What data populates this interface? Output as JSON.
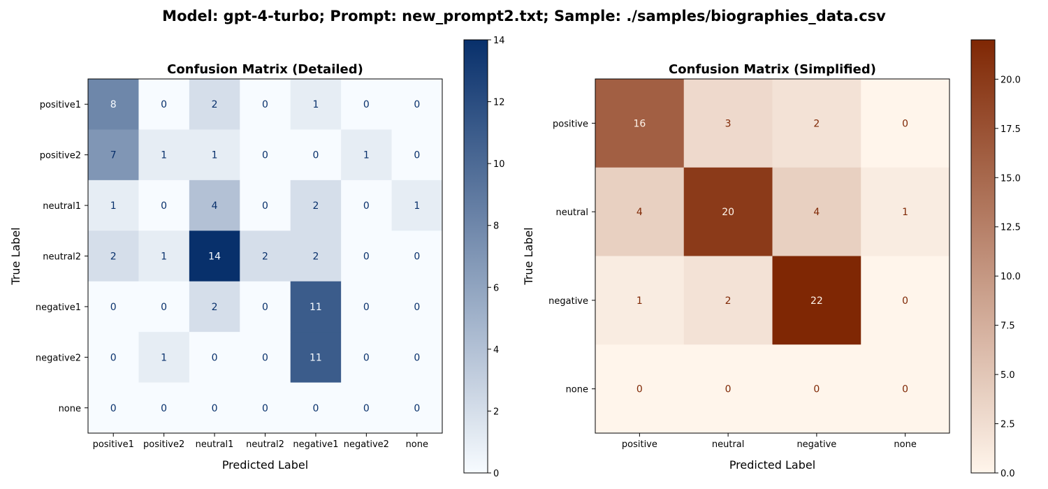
{
  "suptitle": "Model: gpt-4-turbo; Prompt: new_prompt2.txt; Sample: ./samples/biographies_data.csv",
  "chart_data": [
    {
      "type": "heatmap",
      "title": "Confusion Matrix (Detailed)",
      "xlabel": "Predicted Label",
      "ylabel": "True Label",
      "x_categories": [
        "positive1",
        "positive2",
        "neutral1",
        "neutral2",
        "negative1",
        "negative2",
        "none"
      ],
      "y_categories": [
        "positive1",
        "positive2",
        "neutral1",
        "neutral2",
        "negative1",
        "negative2",
        "none"
      ],
      "values": [
        [
          8,
          0,
          2,
          0,
          1,
          0,
          0
        ],
        [
          7,
          1,
          1,
          0,
          0,
          1,
          0
        ],
        [
          1,
          0,
          4,
          0,
          2,
          0,
          1
        ],
        [
          2,
          1,
          14,
          2,
          2,
          0,
          0
        ],
        [
          0,
          0,
          2,
          0,
          11,
          0,
          0
        ],
        [
          0,
          1,
          0,
          0,
          11,
          0,
          0
        ],
        [
          0,
          0,
          0,
          0,
          0,
          0,
          0
        ]
      ],
      "colormap": "Blues",
      "cmap_low": "#f7fbff",
      "cmap_high": "#08306b",
      "colorbar_range": [
        0,
        14
      ],
      "colorbar_ticks": [
        "0",
        "2",
        "4",
        "6",
        "8",
        "10",
        "12",
        "14"
      ],
      "colorbar_tick_values": [
        0,
        2,
        4,
        6,
        8,
        10,
        12,
        14
      ]
    },
    {
      "type": "heatmap",
      "title": "Confusion Matrix (Simplified)",
      "xlabel": "Predicted Label",
      "ylabel": "True Label",
      "x_categories": [
        "positive",
        "neutral",
        "negative",
        "none"
      ],
      "y_categories": [
        "positive",
        "neutral",
        "negative",
        "none"
      ],
      "values": [
        [
          16,
          3,
          2,
          0
        ],
        [
          4,
          20,
          4,
          1
        ],
        [
          1,
          2,
          22,
          0
        ],
        [
          0,
          0,
          0,
          0
        ]
      ],
      "colormap": "Oranges",
      "cmap_low": "#fff5eb",
      "cmap_high": "#7f2704",
      "colorbar_range": [
        0,
        22
      ],
      "colorbar_ticks": [
        "0.0",
        "2.5",
        "5.0",
        "7.5",
        "10.0",
        "12.5",
        "15.0",
        "17.5",
        "20.0"
      ],
      "colorbar_tick_values": [
        0,
        2.5,
        5,
        7.5,
        10,
        12.5,
        15,
        17.5,
        20
      ]
    }
  ]
}
